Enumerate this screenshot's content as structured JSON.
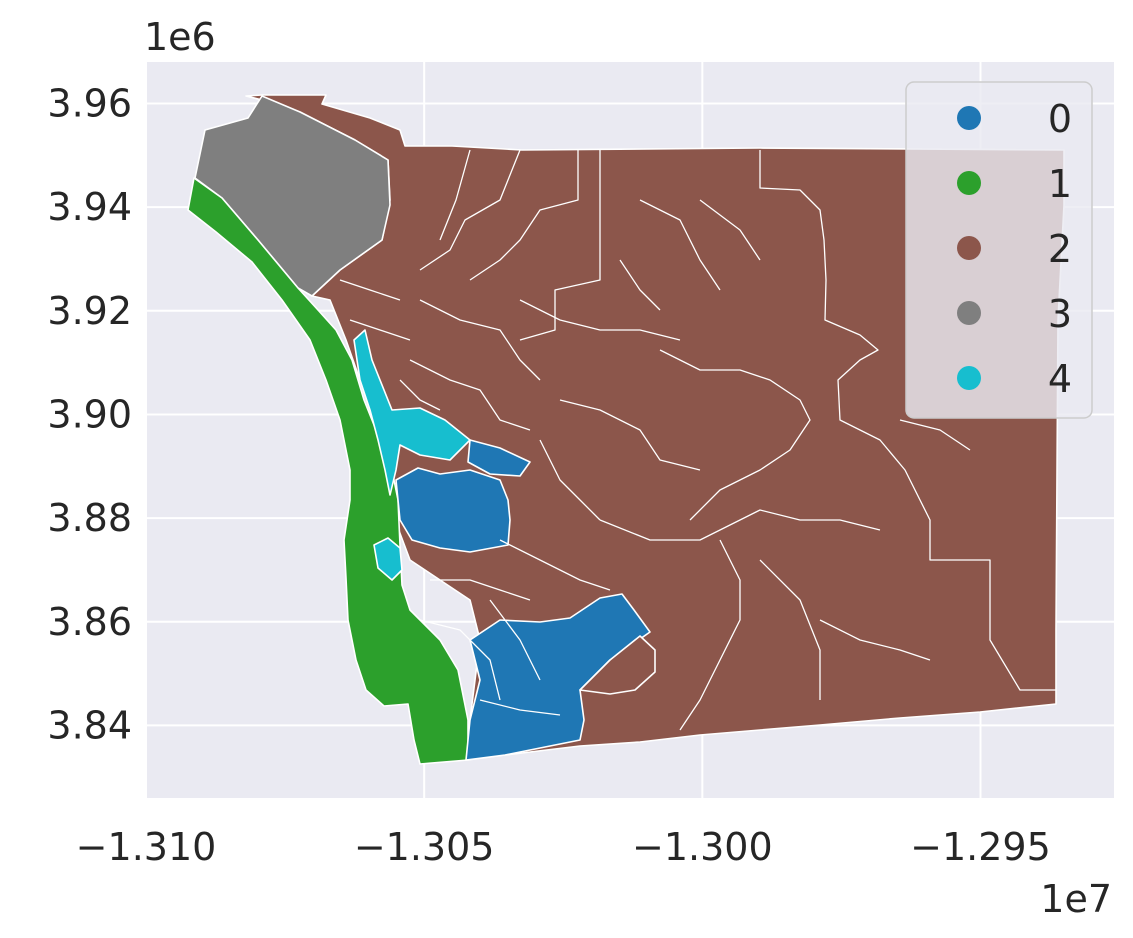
{
  "axes": {
    "y_offset_text": "1e6",
    "x_offset_text": "1e7",
    "y_ticks": [
      "3.84",
      "3.86",
      "3.88",
      "3.90",
      "3.92",
      "3.94",
      "3.96"
    ],
    "x_ticks": [
      "−1.310",
      "−1.305",
      "−1.300",
      "−1.295"
    ],
    "grid": true,
    "background": "#eaeaf2"
  },
  "legend": {
    "position": "top-right",
    "items": [
      {
        "label": "0",
        "color": "#1f77b4"
      },
      {
        "label": "1",
        "color": "#2ca02c"
      },
      {
        "label": "2",
        "color": "#8c564b"
      },
      {
        "label": "3",
        "color": "#7f7f7f"
      },
      {
        "label": "4",
        "color": "#17becf"
      }
    ]
  },
  "chart_data": {
    "type": "choropleth",
    "x_range": [
      -1.31,
      -1.2926
    ],
    "x_unit_multiplier": "1e7",
    "y_range": [
      3.826,
      3.968
    ],
    "y_unit_multiplier": "1e6",
    "x_ticks": [
      -1.31,
      -1.305,
      -1.3,
      -1.295
    ],
    "y_ticks": [
      3.84,
      3.86,
      3.88,
      3.9,
      3.92,
      3.94,
      3.96
    ],
    "categories": [
      0,
      1,
      2,
      3,
      4
    ],
    "category_colors": [
      "#1f77b4",
      "#2ca02c",
      "#8c564b",
      "#7f7f7f",
      "#17becf"
    ]
  }
}
